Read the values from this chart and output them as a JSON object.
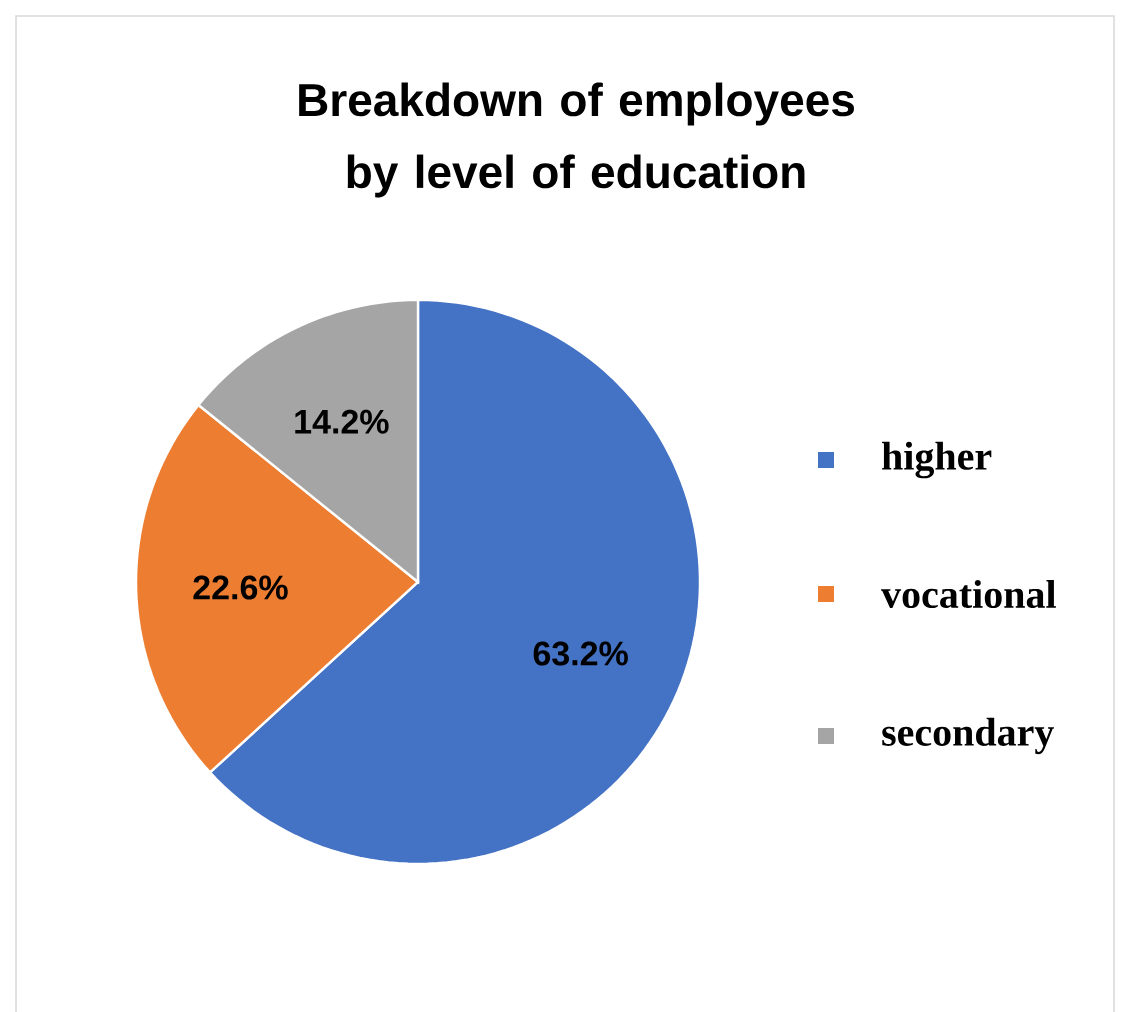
{
  "chart_data": {
    "type": "pie",
    "title": "Breakdown of employees by level of education",
    "categories": [
      "higher",
      "vocational",
      "secondary"
    ],
    "values": [
      63.2,
      22.6,
      14.2
    ],
    "value_labels": [
      "63.2%",
      "22.6%",
      "14.2%"
    ],
    "colors": [
      "#4472c4",
      "#ed7d31",
      "#a5a5a5"
    ],
    "legend": "right"
  }
}
